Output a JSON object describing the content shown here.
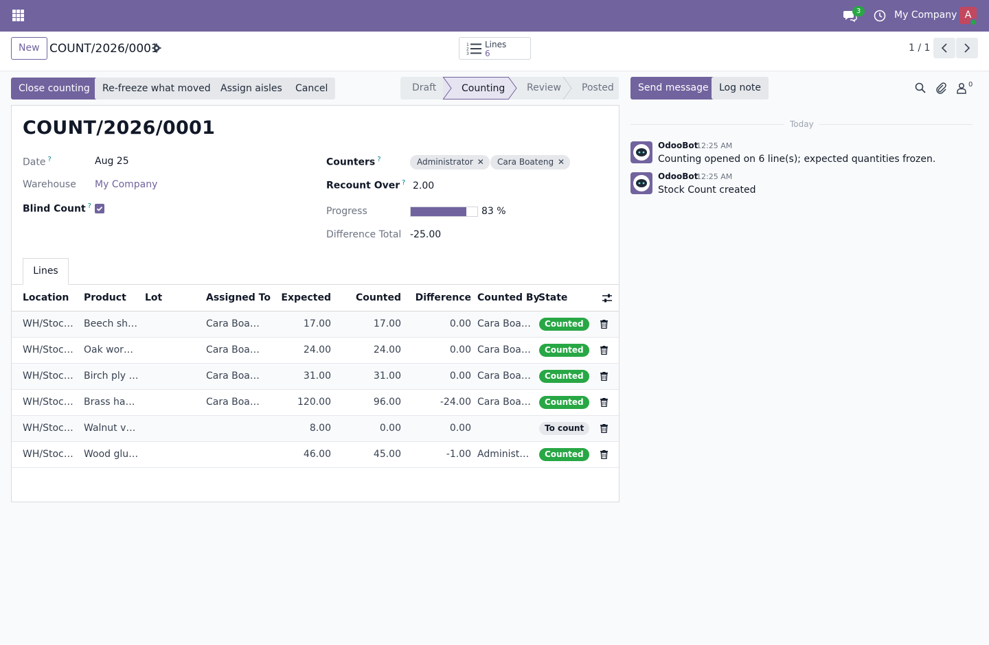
{
  "navbar": {
    "company": "My Company",
    "chat_badge": "3",
    "avatar_letter": "A",
    "accent": "#71639e"
  },
  "control": {
    "new_label": "New",
    "record_name": "COUNT/2026/0001",
    "smart_button": {
      "label": "Lines",
      "count": "6"
    },
    "pager": "1 / 1"
  },
  "actions": {
    "close_counting": "Close counting",
    "refreeze": "Re-freeze what moved",
    "assign_aisles": "Assign aisles",
    "cancel": "Cancel"
  },
  "pipeline": {
    "stages": [
      "Draft",
      "Counting",
      "Review",
      "Posted"
    ],
    "current": "Counting"
  },
  "form": {
    "title": "COUNT/2026/0001",
    "date_label": "Date",
    "date_value": "Aug 25",
    "warehouse_label": "Warehouse",
    "warehouse_value": "My Company",
    "blind_count_label": "Blind Count",
    "blind_count_checked": true,
    "counters_label": "Counters",
    "counters": [
      "Administrator",
      "Cara Boateng"
    ],
    "recount_label": "Recount Over",
    "recount_value": "2.00",
    "progress_label": "Progress",
    "progress_value": 83,
    "progress_text": "83 %",
    "difference_label": "Difference Total",
    "difference_value": "-25.00",
    "tip": "?"
  },
  "tabs": {
    "lines": "Lines"
  },
  "table": {
    "headers": {
      "location": "Location",
      "product": "Product",
      "lot": "Lot",
      "assigned": "Assigned To",
      "expected": "Expected",
      "counted": "Counted",
      "difference": "Difference",
      "counted_by": "Counted By",
      "state": "State"
    },
    "rows": [
      {
        "location": "WH/Stock…",
        "product": "Beech she…",
        "lot": "",
        "assigned": "Cara Boat…",
        "expected": "17.00",
        "counted": "17.00",
        "difference": "0.00",
        "counted_by": "Cara Boat…",
        "state": "Counted"
      },
      {
        "location": "WH/Stock…",
        "product": "Oak work…",
        "lot": "",
        "assigned": "Cara Boat…",
        "expected": "24.00",
        "counted": "24.00",
        "difference": "0.00",
        "counted_by": "Cara Boat…",
        "state": "Counted"
      },
      {
        "location": "WH/Stock…",
        "product": "Birch ply s…",
        "lot": "",
        "assigned": "Cara Boat…",
        "expected": "31.00",
        "counted": "31.00",
        "difference": "0.00",
        "counted_by": "Cara Boat…",
        "state": "Counted"
      },
      {
        "location": "WH/Stock…",
        "product": "Brass han…",
        "lot": "",
        "assigned": "Cara Boat…",
        "expected": "120.00",
        "counted": "96.00",
        "difference": "-24.00",
        "counted_by": "Cara Boat…",
        "state": "Counted"
      },
      {
        "location": "WH/Stock…",
        "product": "Walnut ve…",
        "lot": "",
        "assigned": "",
        "expected": "8.00",
        "counted": "0.00",
        "difference": "0.00",
        "counted_by": "",
        "state": "To count"
      },
      {
        "location": "WH/Stock…",
        "product": "Wood glu…",
        "lot": "",
        "assigned": "",
        "expected": "46.00",
        "counted": "45.00",
        "difference": "-1.00",
        "counted_by": "Administr…",
        "state": "Counted"
      }
    ]
  },
  "chatter": {
    "send_message": "Send message",
    "log_note": "Log note",
    "followers_count": "0",
    "day_separator": "Today",
    "messages": [
      {
        "author": "OdooBot",
        "time": "12:25 AM",
        "body": "Counting opened on 6 line(s); expected quantities frozen."
      },
      {
        "author": "OdooBot",
        "time": "12:25 AM",
        "body": "Stock Count created"
      }
    ]
  }
}
